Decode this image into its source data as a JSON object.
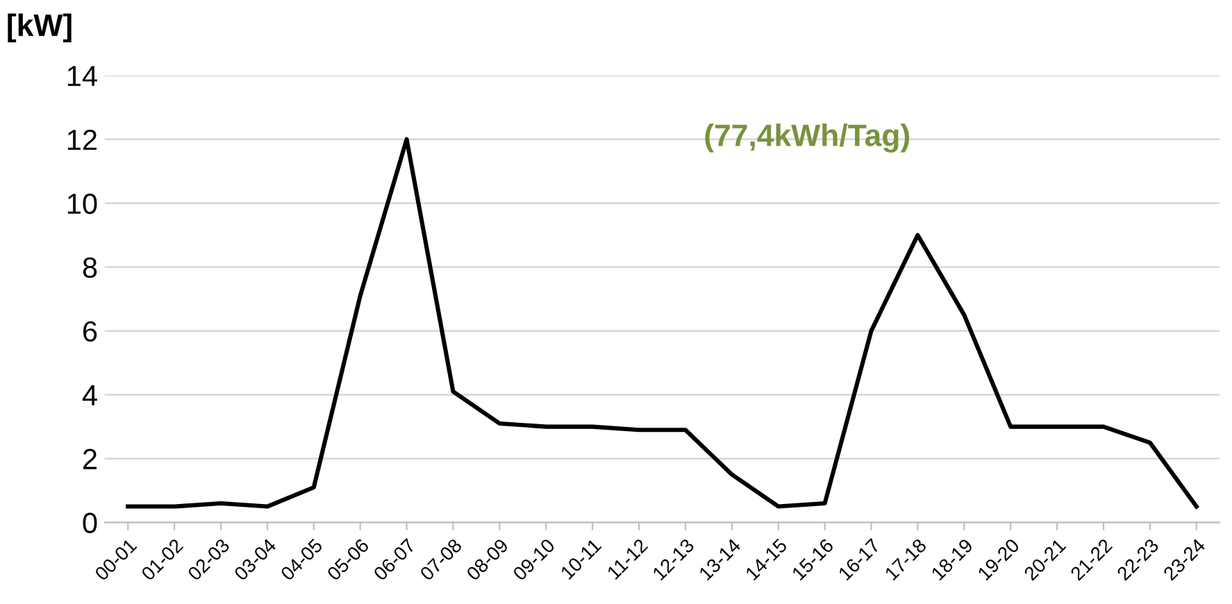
{
  "chart_data": {
    "type": "line",
    "ylabel": "[kW]",
    "categories": [
      "00-01",
      "01-02",
      "02-03",
      "03-04",
      "04-05",
      "05-06",
      "06-07",
      "07-08",
      "08-09",
      "09-10",
      "10-11",
      "11-12",
      "12-13",
      "13-14",
      "14-15",
      "15-16",
      "16-17",
      "17-18",
      "18-19",
      "19-20",
      "20-21",
      "21-22",
      "22-23",
      "23-24"
    ],
    "series": [
      {
        "color": "#000000",
        "values": [
          0.5,
          0.5,
          0.6,
          0.5,
          1.1,
          7.1,
          12.0,
          4.1,
          3.1,
          3.0,
          3.0,
          2.9,
          2.9,
          1.5,
          0.5,
          0.6,
          6.0,
          9.0,
          6.5,
          3.0,
          3.0,
          3.0,
          2.5,
          0.5
        ]
      }
    ],
    "ylim": [
      0,
      14
    ],
    "yticks": [
      0,
      2,
      4,
      6,
      8,
      10,
      12,
      14
    ],
    "grid": "y",
    "legend": false,
    "marker": "none",
    "line_style": "solid",
    "annotations": [
      "(77,4kWh/Tag)"
    ]
  }
}
